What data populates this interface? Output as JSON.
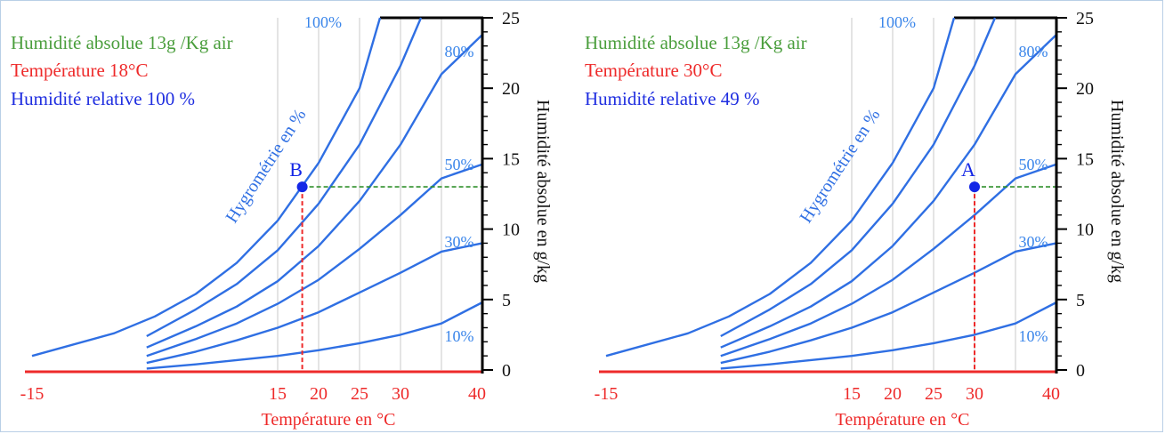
{
  "colors": {
    "curve": "#2f6fe3",
    "pct_label": "#3b86ea",
    "temp": "#ee2a2a",
    "absolute": "#4a9e3c",
    "relative": "#1f2ee0",
    "point": "#1427e6",
    "dashed_h": "#2f8f2a",
    "dashed_v": "#ee2a2a",
    "grid": "#c8c8c8",
    "axis": "#000000"
  },
  "chart_data": [
    {
      "type": "line",
      "info": {
        "absolute": "Humidité absolue 13g /Kg air",
        "temperature": "Température 18°C",
        "relative": "Humidité relative 100 %"
      },
      "curve_label": "Hygrométrie en %",
      "xlabel": "Température en °C",
      "ylabel": "Humidité absolue en g/kg",
      "x_ticks": [
        "-15",
        "15",
        "20",
        "25",
        "30",
        "40"
      ],
      "y_ticks": [
        "0",
        "5",
        "10",
        "15",
        "20",
        "25"
      ],
      "xlim": [
        -15,
        40
      ],
      "ylim": [
        0,
        25
      ],
      "series": [
        {
          "name": "100%",
          "x": [
            -15,
            -5,
            0,
            5,
            10,
            15,
            20,
            25,
            27.5
          ],
          "y": [
            1.0,
            2.6,
            3.8,
            5.4,
            7.6,
            10.6,
            14.7,
            20.0,
            25.0
          ]
        },
        {
          "name": "80%",
          "x": [
            -1,
            5,
            10,
            15,
            20,
            25,
            30,
            32.5
          ],
          "y": [
            2.4,
            4.3,
            6.1,
            8.5,
            11.8,
            16.0,
            21.6,
            25.0
          ]
        },
        {
          "name": "",
          "x": [
            -1,
            5,
            10,
            15,
            20,
            25,
            30,
            35,
            40
          ],
          "y": [
            1.6,
            3.1,
            4.5,
            6.3,
            8.8,
            12.0,
            16.0,
            21.0,
            23.8
          ]
        },
        {
          "name": "50%",
          "x": [
            -1,
            5,
            10,
            15,
            20,
            25,
            30,
            35,
            40
          ],
          "y": [
            1.0,
            2.2,
            3.3,
            4.7,
            6.4,
            8.6,
            11.0,
            13.6,
            14.6
          ]
        },
        {
          "name": "30%",
          "x": [
            -1,
            5,
            10,
            15,
            20,
            25,
            30,
            35,
            40
          ],
          "y": [
            0.5,
            1.3,
            2.1,
            3.0,
            4.1,
            5.5,
            6.9,
            8.4,
            9.0
          ]
        },
        {
          "name": "10%",
          "x": [
            -1,
            5,
            10,
            15,
            20,
            25,
            30,
            35,
            40
          ],
          "y": [
            0.1,
            0.4,
            0.7,
            1.0,
            1.4,
            1.9,
            2.5,
            3.3,
            4.8
          ]
        }
      ],
      "point": {
        "label": "B",
        "x": 18,
        "y": 13
      },
      "grid_x": [
        15,
        20,
        25,
        30,
        35
      ],
      "grid": true
    },
    {
      "type": "line",
      "info": {
        "absolute": "Humidité absolue 13g /Kg air",
        "temperature": "Température 30°C",
        "relative": "Humidité relative 49 %"
      },
      "curve_label": "Hygrométrie en %",
      "xlabel": "Température en °C",
      "ylabel": "Humidité absolue en g/kg",
      "x_ticks": [
        "-15",
        "15",
        "20",
        "25",
        "30",
        "40"
      ],
      "y_ticks": [
        "0",
        "5",
        "10",
        "15",
        "20",
        "25"
      ],
      "xlim": [
        -15,
        40
      ],
      "ylim": [
        0,
        25
      ],
      "series": [
        {
          "name": "100%",
          "x": [
            -15,
            -5,
            0,
            5,
            10,
            15,
            20,
            25,
            27.5
          ],
          "y": [
            1.0,
            2.6,
            3.8,
            5.4,
            7.6,
            10.6,
            14.7,
            20.0,
            25.0
          ]
        },
        {
          "name": "80%",
          "x": [
            -1,
            5,
            10,
            15,
            20,
            25,
            30,
            32.5
          ],
          "y": [
            2.4,
            4.3,
            6.1,
            8.5,
            11.8,
            16.0,
            21.6,
            25.0
          ]
        },
        {
          "name": "",
          "x": [
            -1,
            5,
            10,
            15,
            20,
            25,
            30,
            35,
            40
          ],
          "y": [
            1.6,
            3.1,
            4.5,
            6.3,
            8.8,
            12.0,
            16.0,
            21.0,
            23.8
          ]
        },
        {
          "name": "50%",
          "x": [
            -1,
            5,
            10,
            15,
            20,
            25,
            30,
            35,
            40
          ],
          "y": [
            1.0,
            2.2,
            3.3,
            4.7,
            6.4,
            8.6,
            11.0,
            13.6,
            14.6
          ]
        },
        {
          "name": "30%",
          "x": [
            -1,
            5,
            10,
            15,
            20,
            25,
            30,
            35,
            40
          ],
          "y": [
            0.5,
            1.3,
            2.1,
            3.0,
            4.1,
            5.5,
            6.9,
            8.4,
            9.0
          ]
        },
        {
          "name": "10%",
          "x": [
            -1,
            5,
            10,
            15,
            20,
            25,
            30,
            35,
            40
          ],
          "y": [
            0.1,
            0.4,
            0.7,
            1.0,
            1.4,
            1.9,
            2.5,
            3.3,
            4.8
          ]
        }
      ],
      "point": {
        "label": "A",
        "x": 30,
        "y": 13
      },
      "grid_x": [
        15,
        20,
        25,
        30,
        35
      ],
      "grid": true
    }
  ]
}
